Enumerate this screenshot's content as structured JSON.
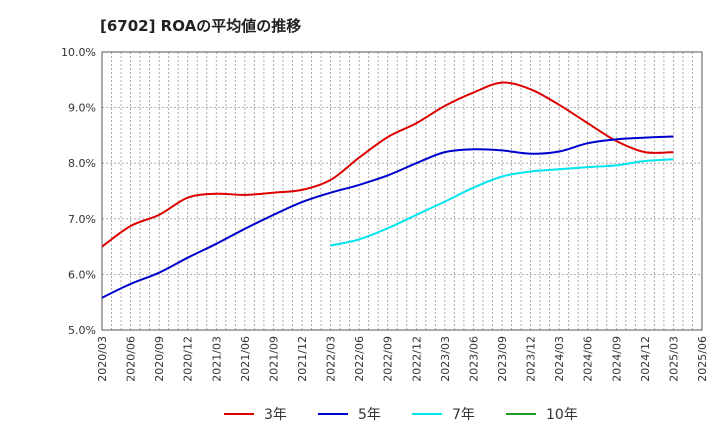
{
  "chart_data": {
    "type": "line",
    "title": "[6702]  ROAの平均値の推移",
    "xlabel": "",
    "ylabel": "",
    "ylim": [
      5.0,
      10.0
    ],
    "y_ticks": [
      "5.0%",
      "6.0%",
      "7.0%",
      "8.0%",
      "9.0%",
      "10.0%"
    ],
    "grid": true,
    "legend_position": "bottom",
    "categories": [
      "2020/03",
      "2020/06",
      "2020/09",
      "2020/12",
      "2021/03",
      "2021/06",
      "2021/09",
      "2021/12",
      "2022/03",
      "2022/06",
      "2022/09",
      "2022/12",
      "2023/03",
      "2023/06",
      "2023/09",
      "2023/12",
      "2024/03",
      "2024/06",
      "2024/09",
      "2024/12",
      "2025/03",
      "2025/06"
    ],
    "series": [
      {
        "name": "3年",
        "color": "#dd0000",
        "values": [
          6.5,
          6.87,
          7.07,
          7.38,
          7.45,
          7.43,
          7.47,
          7.52,
          7.7,
          8.1,
          8.47,
          8.72,
          9.03,
          9.27,
          9.45,
          9.33,
          9.05,
          8.72,
          8.4,
          8.2,
          8.2,
          null
        ]
      },
      {
        "name": "5年",
        "color": "#0000cc",
        "values": [
          5.58,
          5.83,
          6.03,
          6.3,
          6.55,
          6.82,
          7.07,
          7.3,
          7.47,
          7.61,
          7.78,
          8.0,
          8.2,
          8.25,
          8.23,
          8.17,
          8.21,
          8.36,
          8.43,
          8.46,
          8.48,
          null
        ]
      },
      {
        "name": "7年",
        "color": "#00e5ee",
        "values": [
          null,
          null,
          null,
          null,
          null,
          null,
          null,
          null,
          6.52,
          6.63,
          6.83,
          7.07,
          7.31,
          7.56,
          7.76,
          7.85,
          7.89,
          7.93,
          7.96,
          8.04,
          8.07,
          null
        ]
      },
      {
        "name": "10年",
        "color": "#229922",
        "values": [
          null,
          null,
          null,
          null,
          null,
          null,
          null,
          null,
          null,
          null,
          null,
          null,
          null,
          null,
          null,
          null,
          null,
          null,
          null,
          null,
          null,
          null
        ]
      }
    ]
  }
}
